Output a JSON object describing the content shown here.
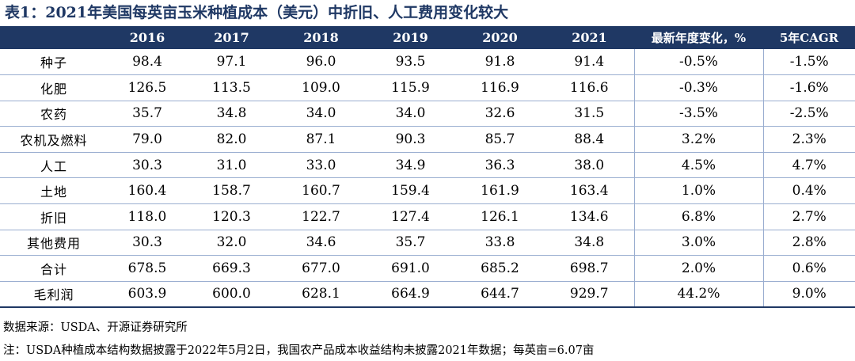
{
  "title": "表1：2021年美国每英亩玉米种植成本（美元）中折旧、人工费用变化较大",
  "table": {
    "headers": [
      "",
      "2016",
      "2017",
      "2018",
      "2019",
      "2020",
      "2021",
      "最新年度变化，%",
      "5年CAGR"
    ],
    "rows": [
      {
        "label": "种子",
        "values": [
          "98.4",
          "97.1",
          "96.0",
          "93.5",
          "91.8",
          "91.4",
          "-0.5%",
          "-1.5%"
        ]
      },
      {
        "label": "化肥",
        "values": [
          "126.5",
          "113.5",
          "109.0",
          "115.9",
          "116.9",
          "116.6",
          "-0.3%",
          "-1.6%"
        ]
      },
      {
        "label": "农药",
        "values": [
          "35.7",
          "34.8",
          "34.0",
          "34.0",
          "32.6",
          "31.5",
          "-3.5%",
          "-2.5%"
        ]
      },
      {
        "label": "农机及燃料",
        "values": [
          "79.0",
          "82.0",
          "87.1",
          "90.3",
          "85.7",
          "88.4",
          "3.2%",
          "2.3%"
        ]
      },
      {
        "label": "人工",
        "values": [
          "30.3",
          "31.0",
          "33.0",
          "34.9",
          "36.3",
          "38.0",
          "4.5%",
          "4.7%"
        ]
      },
      {
        "label": "土地",
        "values": [
          "160.4",
          "158.7",
          "160.7",
          "159.4",
          "161.9",
          "163.4",
          "1.0%",
          "0.4%"
        ]
      },
      {
        "label": "折旧",
        "values": [
          "118.0",
          "120.3",
          "122.7",
          "127.4",
          "126.1",
          "134.6",
          "6.8%",
          "2.7%"
        ]
      },
      {
        "label": "其他费用",
        "values": [
          "30.3",
          "32.0",
          "34.6",
          "35.7",
          "33.8",
          "34.8",
          "3.0%",
          "2.8%"
        ]
      },
      {
        "label": "合计",
        "values": [
          "678.5",
          "669.3",
          "677.0",
          "691.0",
          "685.2",
          "698.7",
          "2.0%",
          "0.6%"
        ]
      },
      {
        "label": "毛利润",
        "values": [
          "603.9",
          "600.0",
          "628.1",
          "664.9",
          "644.7",
          "929.7",
          "44.2%",
          "9.0%"
        ]
      }
    ]
  },
  "source": "数据来源：USDA、开源证券研究所",
  "note": "注：USDA种植成本结构数据披露于2022年5月2日，我国农产品成本收益结构未披露2021年数据；每英亩=6.07亩",
  "colors": {
    "header_bg": "#1f3864",
    "title": "#1f3864",
    "rule": "#9aaed0"
  }
}
